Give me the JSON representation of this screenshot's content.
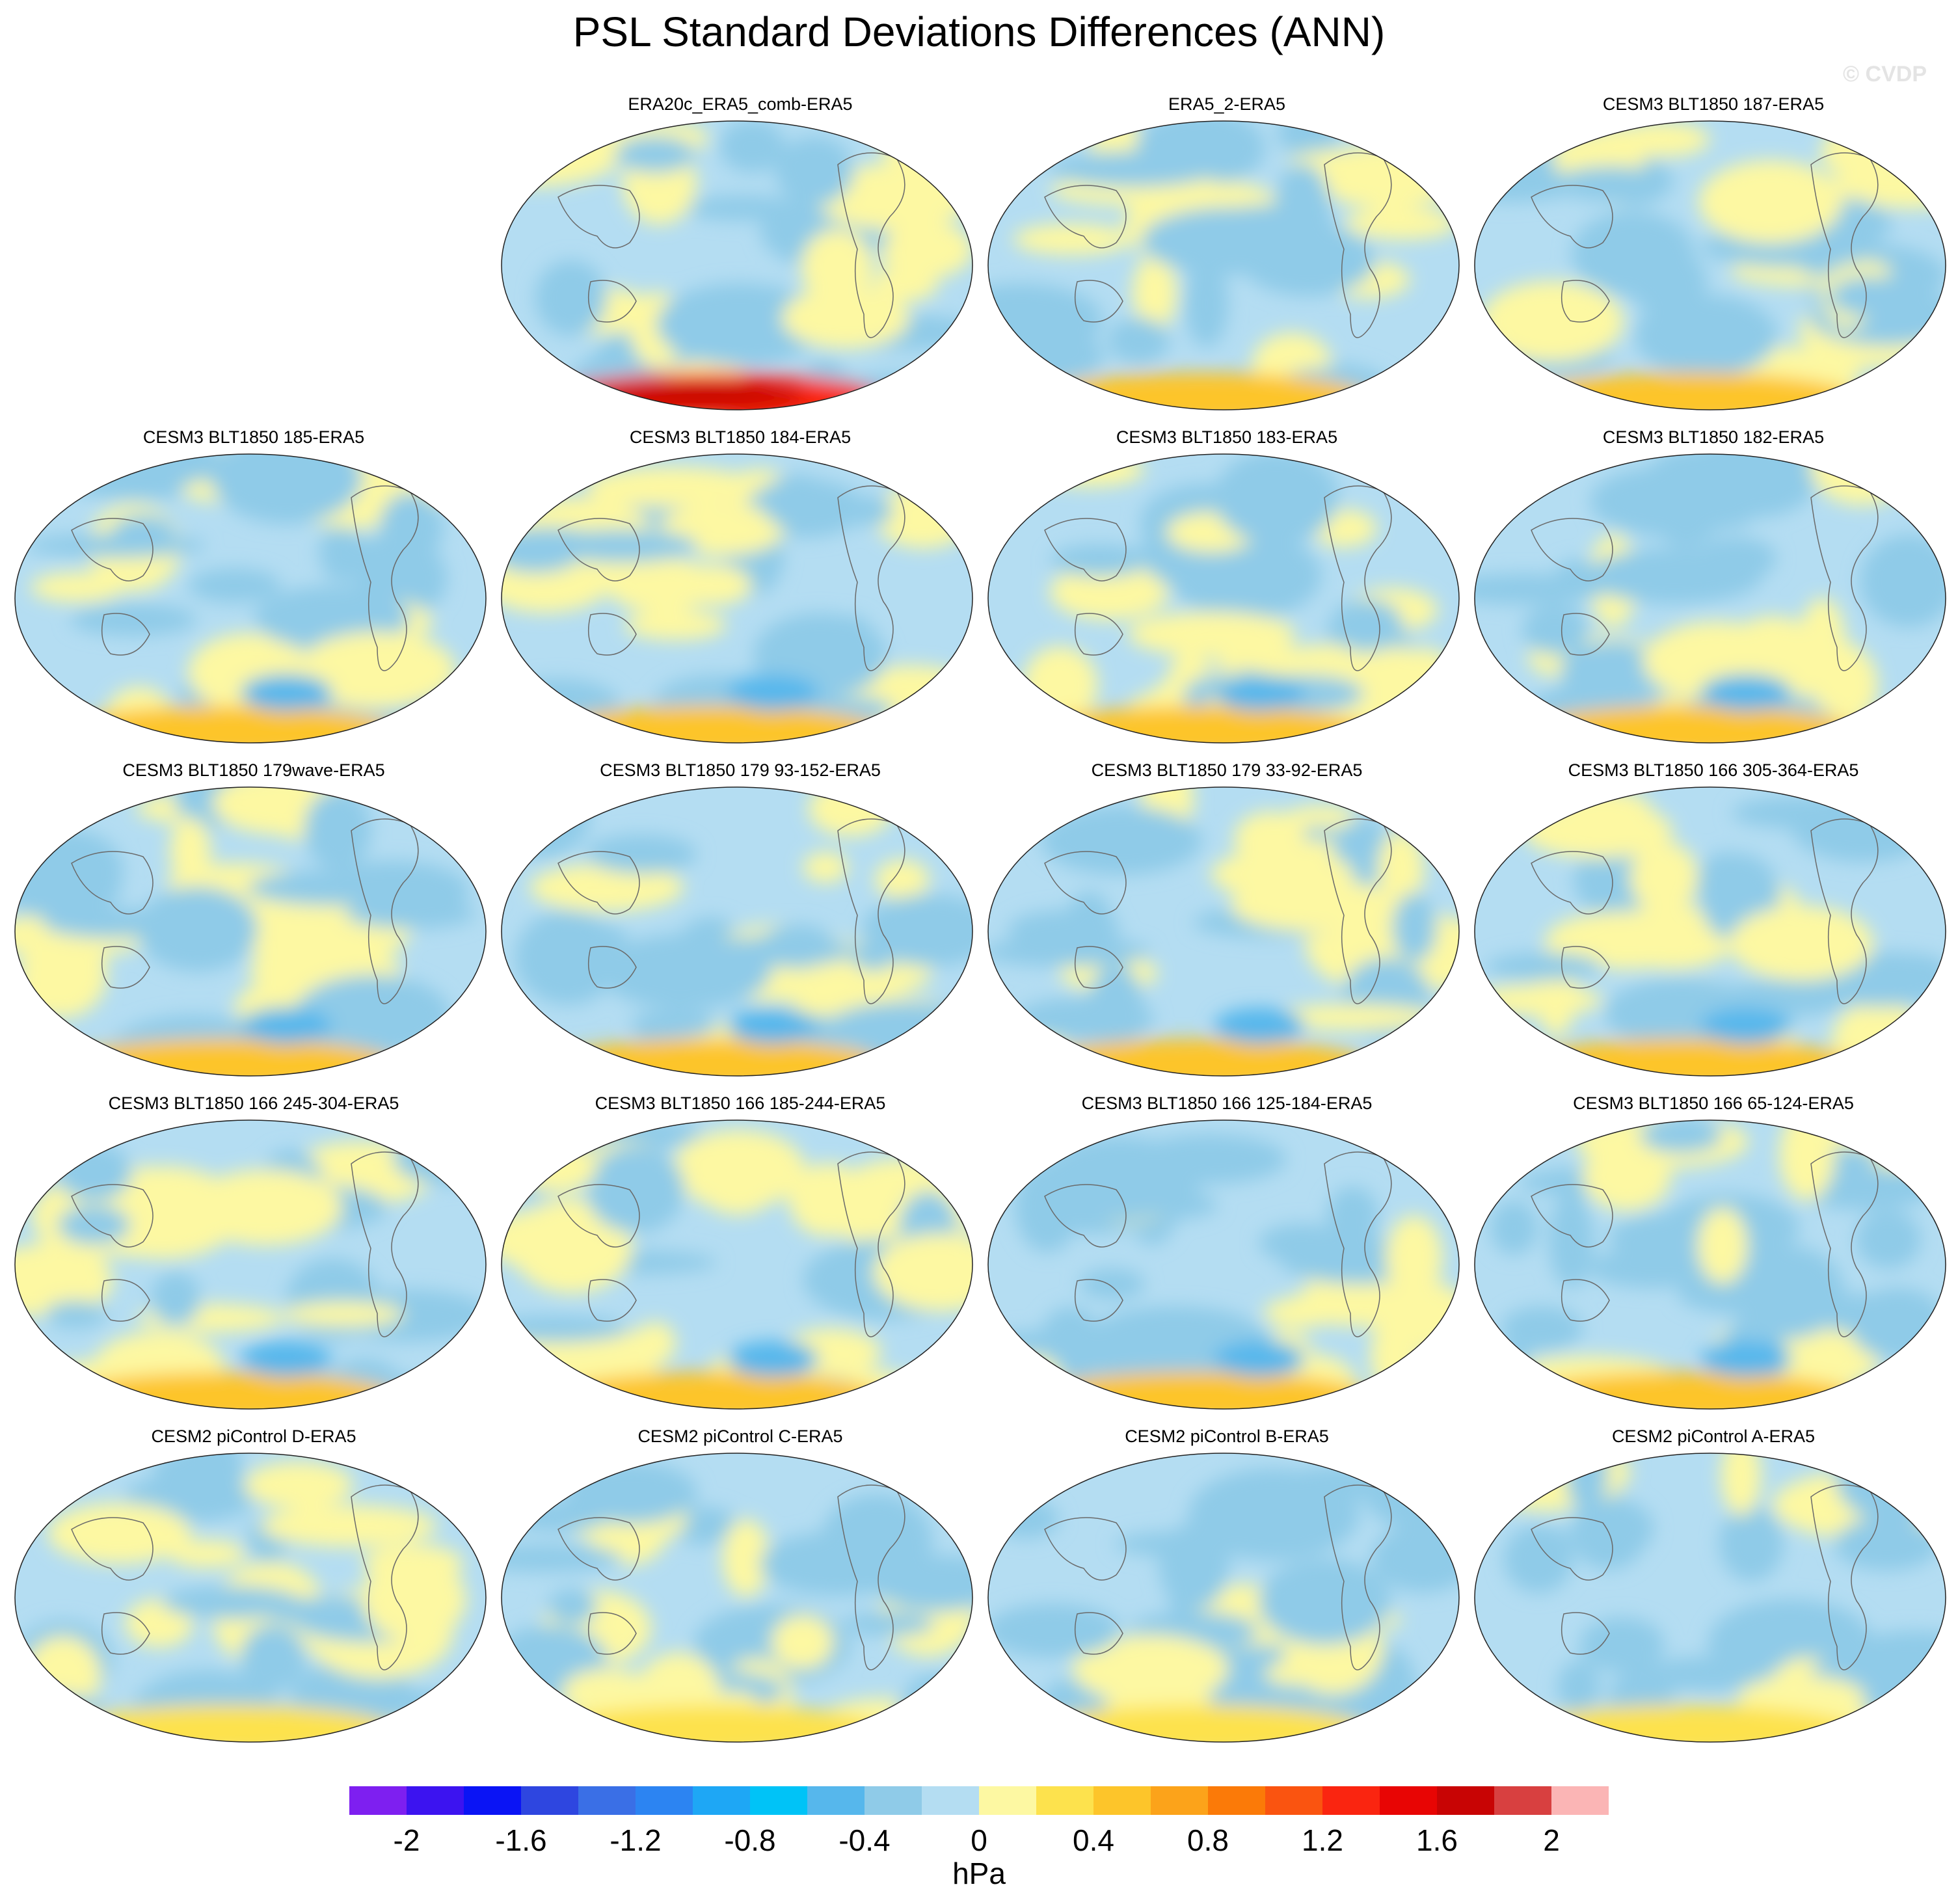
{
  "title": "PSL Standard Deviations Differences (ANN)",
  "watermark": "© CVDP",
  "colorbar": {
    "units": "hPa",
    "labels": [
      "-2",
      "-1.6",
      "-1.2",
      "-0.8",
      "-0.4",
      "0",
      "0.4",
      "0.8",
      "1.2",
      "1.6",
      "2"
    ],
    "levels": [
      -2,
      -1.8,
      -1.6,
      -1.4,
      -1.2,
      -1.0,
      -0.8,
      -0.6,
      -0.4,
      -0.2,
      0,
      0.2,
      0.4,
      0.6,
      0.8,
      1.0,
      1.2,
      1.4,
      1.6,
      1.8,
      2.0
    ],
    "colors": [
      "#7e1ff0",
      "#3c13f0",
      "#0a14f5",
      "#2e46e0",
      "#3a6fe6",
      "#2c84f2",
      "#1ea7f5",
      "#00c3f7",
      "#56b7ec",
      "#8fcbe8",
      "#b4ddf2",
      "#fdf8a2",
      "#fde24d",
      "#fdc52a",
      "#fca31a",
      "#fb7a08",
      "#fa5410",
      "#fa2510",
      "#e80504",
      "#c80404",
      "#d84040",
      "#fbb5b5"
    ]
  },
  "panels": [
    {
      "row": 0,
      "col": 1,
      "title": "ERA20c_ERA5_comb-ERA5"
    },
    {
      "row": 0,
      "col": 2,
      "title": "ERA5_2-ERA5"
    },
    {
      "row": 0,
      "col": 3,
      "title": "CESM3 BLT1850 187-ERA5"
    },
    {
      "row": 1,
      "col": 0,
      "title": "CESM3 BLT1850 185-ERA5"
    },
    {
      "row": 1,
      "col": 1,
      "title": "CESM3 BLT1850 184-ERA5"
    },
    {
      "row": 1,
      "col": 2,
      "title": "CESM3 BLT1850 183-ERA5"
    },
    {
      "row": 1,
      "col": 3,
      "title": "CESM3 BLT1850 182-ERA5"
    },
    {
      "row": 2,
      "col": 0,
      "title": "CESM3 BLT1850 179wave-ERA5"
    },
    {
      "row": 2,
      "col": 1,
      "title": "CESM3 BLT1850 179 93-152-ERA5"
    },
    {
      "row": 2,
      "col": 2,
      "title": "CESM3 BLT1850 179 33-92-ERA5"
    },
    {
      "row": 2,
      "col": 3,
      "title": "CESM3 BLT1850 166 305-364-ERA5"
    },
    {
      "row": 3,
      "col": 0,
      "title": "CESM3 BLT1850 166 245-304-ERA5"
    },
    {
      "row": 3,
      "col": 1,
      "title": "CESM3 BLT1850 166 185-244-ERA5"
    },
    {
      "row": 3,
      "col": 2,
      "title": "CESM3 BLT1850 166 125-184-ERA5"
    },
    {
      "row": 3,
      "col": 3,
      "title": "CESM3 BLT1850 166 65-124-ERA5"
    },
    {
      "row": 4,
      "col": 0,
      "title": "CESM2 piControl D-ERA5"
    },
    {
      "row": 4,
      "col": 1,
      "title": "CESM2 piControl C-ERA5"
    },
    {
      "row": 4,
      "col": 2,
      "title": "CESM2 piControl B-ERA5"
    },
    {
      "row": 4,
      "col": 3,
      "title": "CESM2 piControl A-ERA5"
    }
  ]
}
